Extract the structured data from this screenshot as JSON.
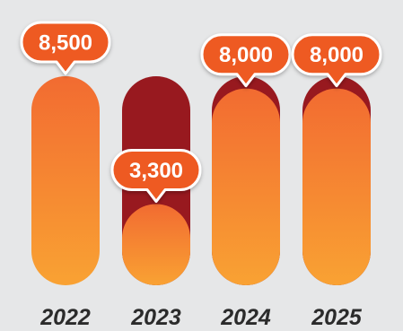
{
  "chart_data": {
    "type": "bar",
    "categories": [
      "2022",
      "2023",
      "2024",
      "2025"
    ],
    "values": [
      8500,
      3300,
      8000,
      8000
    ],
    "value_labels": [
      "8,500",
      "3,300",
      "8,000",
      "8,000"
    ],
    "ylim": [
      0,
      8500
    ],
    "title": "",
    "xlabel": "",
    "ylabel": "",
    "grid": false,
    "legend": "none",
    "colors": {
      "bar_fill_top": "#f26b31",
      "bar_fill_bottom": "#f9a233",
      "track": "#98191f",
      "callout_fill": "#ee5a24",
      "callout_stroke": "#ffffff",
      "background": "#e6e7e8",
      "tick_text": "#2b2b2b"
    }
  }
}
